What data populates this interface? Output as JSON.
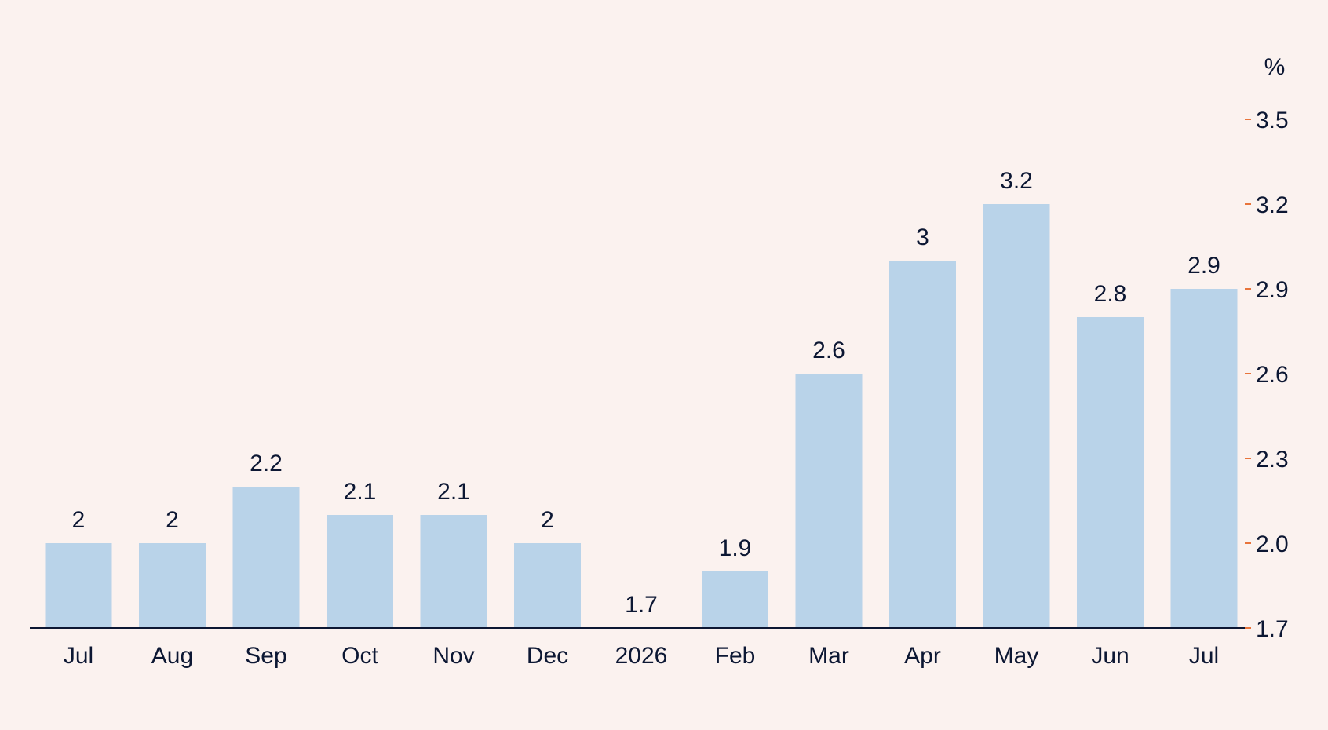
{
  "chart_data": {
    "type": "bar",
    "title": "",
    "xlabel": "",
    "ylabel": "%",
    "categories": [
      "Jul",
      "Aug",
      "Sep",
      "Oct",
      "Nov",
      "Dec",
      "2026",
      "Feb",
      "Mar",
      "Apr",
      "May",
      "Jun",
      "Jul"
    ],
    "values": [
      2,
      2,
      2.2,
      2.1,
      2.1,
      2,
      1.7,
      1.9,
      2.6,
      3,
      3.2,
      2.8,
      2.9
    ],
    "value_labels": [
      "2",
      "2",
      "2.2",
      "2.1",
      "2.1",
      "2",
      "1.7",
      "1.9",
      "2.6",
      "3",
      "3.2",
      "2.8",
      "2.9"
    ],
    "ylim": [
      1.7,
      3.5
    ],
    "y_ticks": [
      1.7,
      2.0,
      2.3,
      2.6,
      2.9,
      3.2,
      3.5
    ],
    "y_tick_labels": [
      "1.7",
      "2.0",
      "2.3",
      "2.6",
      "2.9",
      "3.2",
      "3.5"
    ],
    "y_axis_position": "right",
    "grid": false,
    "legend": "none",
    "colors": {
      "background": "#fbf2ef",
      "bar": "#b9d3e9",
      "text": "#0c1733",
      "axis": "#0c1733",
      "tick_mark": "#e8743b"
    }
  }
}
